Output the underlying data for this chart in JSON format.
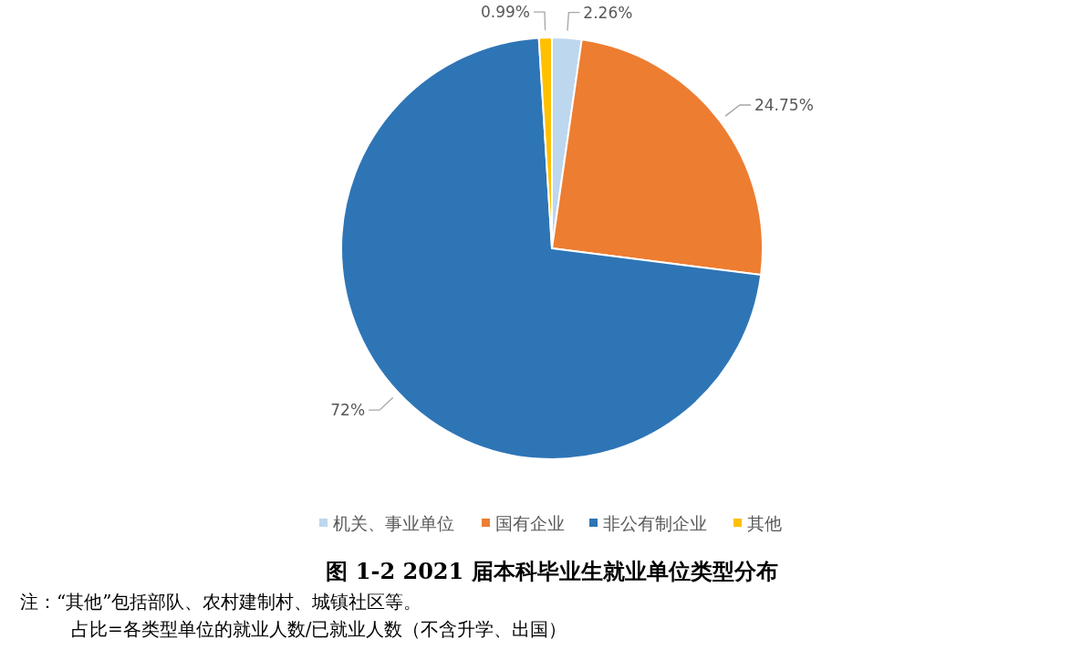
{
  "chart_data": {
    "type": "pie",
    "title": "图 1-2   2021 届本科毕业生就业单位类型分布",
    "categories": [
      "机关、事业单位",
      "国有企业",
      "非公有制企业",
      "其他"
    ],
    "values": [
      2.26,
      24.75,
      72,
      0.99
    ],
    "value_labels": [
      "2.26%",
      "24.75%",
      "72%",
      "0.99%"
    ],
    "colors": [
      "#bdd7ee",
      "#ed7d31",
      "#2e75b6",
      "#ffc000"
    ],
    "legend": "bottom",
    "annotations": [
      "注：“其他”包括部队、农村建制村、城镇社区等。",
      "占比=各类型单位的就业人数/已就业人数（不含升学、出国）"
    ]
  }
}
